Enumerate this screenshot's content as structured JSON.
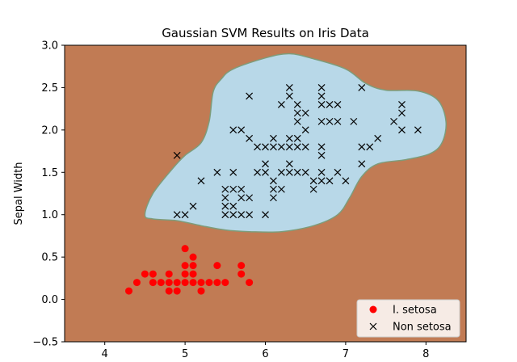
{
  "chart_data": {
    "type": "scatter",
    "title": "Gaussian SVM Results on Iris Data",
    "xlabel": "",
    "ylabel": "Sepal Width",
    "xlim": [
      3.5,
      8.5
    ],
    "ylim": [
      -0.5,
      3.0
    ],
    "xticks": [
      4,
      5,
      6,
      7,
      8
    ],
    "yticks": [
      -0.5,
      0.0,
      0.5,
      1.0,
      1.5,
      2.0,
      2.5,
      3.0
    ],
    "ytick_labels": [
      "−0.5",
      "0.0",
      "0.5",
      "1.0",
      "1.5",
      "2.0",
      "2.5",
      "3.0"
    ],
    "grid": false,
    "legend_placement": "lower-right",
    "colors": {
      "background_region": "#c17b54",
      "decision_region": "#b8d8e8",
      "setosa": "#ff0000",
      "non_setosa": "#000000"
    },
    "decision_boundary": {
      "class": "Non setosa",
      "outline": [
        [
          4.5,
          1.0
        ],
        [
          4.6,
          1.25
        ],
        [
          4.85,
          1.55
        ],
        [
          5.0,
          1.7
        ],
        [
          5.2,
          1.85
        ],
        [
          5.3,
          2.1
        ],
        [
          5.35,
          2.45
        ],
        [
          5.45,
          2.6
        ],
        [
          5.6,
          2.72
        ],
        [
          6.0,
          2.85
        ],
        [
          6.3,
          2.9
        ],
        [
          6.6,
          2.84
        ],
        [
          7.0,
          2.72
        ],
        [
          7.25,
          2.55
        ],
        [
          7.5,
          2.47
        ],
        [
          7.9,
          2.46
        ],
        [
          8.15,
          2.35
        ],
        [
          8.25,
          2.1
        ],
        [
          8.2,
          1.85
        ],
        [
          8.05,
          1.72
        ],
        [
          7.75,
          1.65
        ],
        [
          7.4,
          1.6
        ],
        [
          7.2,
          1.45
        ],
        [
          7.05,
          1.2
        ],
        [
          6.9,
          1.0
        ],
        [
          6.6,
          0.87
        ],
        [
          6.2,
          0.8
        ],
        [
          5.8,
          0.8
        ],
        [
          5.5,
          0.82
        ],
        [
          5.2,
          0.87
        ],
        [
          4.9,
          0.93
        ],
        [
          4.6,
          0.95
        ]
      ]
    },
    "series": [
      {
        "name": "I. setosa",
        "marker": "o",
        "points": [
          [
            4.3,
            0.1
          ],
          [
            4.4,
            0.2
          ],
          [
            4.5,
            0.3
          ],
          [
            4.6,
            0.2
          ],
          [
            4.6,
            0.3
          ],
          [
            4.7,
            0.2
          ],
          [
            4.8,
            0.1
          ],
          [
            4.8,
            0.2
          ],
          [
            4.8,
            0.3
          ],
          [
            4.9,
            0.1
          ],
          [
            4.9,
            0.2
          ],
          [
            5.0,
            0.2
          ],
          [
            5.0,
            0.3
          ],
          [
            5.0,
            0.4
          ],
          [
            5.0,
            0.6
          ],
          [
            5.1,
            0.2
          ],
          [
            5.1,
            0.3
          ],
          [
            5.1,
            0.4
          ],
          [
            5.1,
            0.5
          ],
          [
            5.2,
            0.1
          ],
          [
            5.2,
            0.2
          ],
          [
            5.3,
            0.2
          ],
          [
            5.4,
            0.2
          ],
          [
            5.4,
            0.4
          ],
          [
            5.5,
            0.2
          ],
          [
            5.7,
            0.3
          ],
          [
            5.7,
            0.4
          ],
          [
            5.8,
            0.2
          ]
        ]
      },
      {
        "name": "Non setosa",
        "marker": "x",
        "points": [
          [
            4.9,
            1.7
          ],
          [
            4.9,
            1.0
          ],
          [
            5.0,
            1.0
          ],
          [
            5.1,
            1.1
          ],
          [
            5.2,
            1.4
          ],
          [
            5.4,
            1.5
          ],
          [
            5.5,
            1.0
          ],
          [
            5.5,
            1.1
          ],
          [
            5.5,
            1.2
          ],
          [
            5.5,
            1.3
          ],
          [
            5.6,
            1.0
          ],
          [
            5.6,
            1.1
          ],
          [
            5.6,
            1.3
          ],
          [
            5.6,
            1.5
          ],
          [
            5.6,
            2.0
          ],
          [
            5.7,
            1.0
          ],
          [
            5.7,
            1.2
          ],
          [
            5.7,
            1.3
          ],
          [
            5.7,
            2.0
          ],
          [
            5.8,
            1.0
          ],
          [
            5.8,
            1.2
          ],
          [
            5.8,
            1.9
          ],
          [
            5.8,
            2.4
          ],
          [
            5.9,
            1.5
          ],
          [
            5.9,
            1.8
          ],
          [
            6.0,
            1.0
          ],
          [
            6.0,
            1.5
          ],
          [
            6.0,
            1.6
          ],
          [
            6.0,
            1.8
          ],
          [
            6.1,
            1.2
          ],
          [
            6.1,
            1.3
          ],
          [
            6.1,
            1.4
          ],
          [
            6.1,
            1.8
          ],
          [
            6.1,
            1.9
          ],
          [
            6.2,
            1.3
          ],
          [
            6.2,
            1.5
          ],
          [
            6.2,
            1.8
          ],
          [
            6.2,
            2.3
          ],
          [
            6.3,
            1.5
          ],
          [
            6.3,
            1.6
          ],
          [
            6.3,
            1.8
          ],
          [
            6.3,
            1.9
          ],
          [
            6.3,
            2.4
          ],
          [
            6.3,
            2.5
          ],
          [
            6.4,
            1.5
          ],
          [
            6.4,
            1.8
          ],
          [
            6.4,
            1.9
          ],
          [
            6.4,
            2.1
          ],
          [
            6.4,
            2.2
          ],
          [
            6.4,
            2.3
          ],
          [
            6.5,
            1.5
          ],
          [
            6.5,
            1.8
          ],
          [
            6.5,
            2.0
          ],
          [
            6.5,
            2.2
          ],
          [
            6.6,
            1.3
          ],
          [
            6.6,
            1.4
          ],
          [
            6.7,
            1.4
          ],
          [
            6.7,
            1.5
          ],
          [
            6.7,
            1.7
          ],
          [
            6.7,
            1.8
          ],
          [
            6.7,
            2.1
          ],
          [
            6.7,
            2.3
          ],
          [
            6.7,
            2.4
          ],
          [
            6.7,
            2.5
          ],
          [
            6.8,
            1.4
          ],
          [
            6.8,
            2.1
          ],
          [
            6.8,
            2.3
          ],
          [
            6.9,
            1.5
          ],
          [
            6.9,
            2.1
          ],
          [
            6.9,
            2.3
          ],
          [
            7.0,
            1.4
          ],
          [
            7.1,
            2.1
          ],
          [
            7.2,
            1.6
          ],
          [
            7.2,
            1.8
          ],
          [
            7.2,
            2.5
          ],
          [
            7.3,
            1.8
          ],
          [
            7.4,
            1.9
          ],
          [
            7.6,
            2.1
          ],
          [
            7.7,
            2.0
          ],
          [
            7.7,
            2.2
          ],
          [
            7.7,
            2.3
          ],
          [
            7.9,
            2.0
          ]
        ]
      }
    ]
  }
}
